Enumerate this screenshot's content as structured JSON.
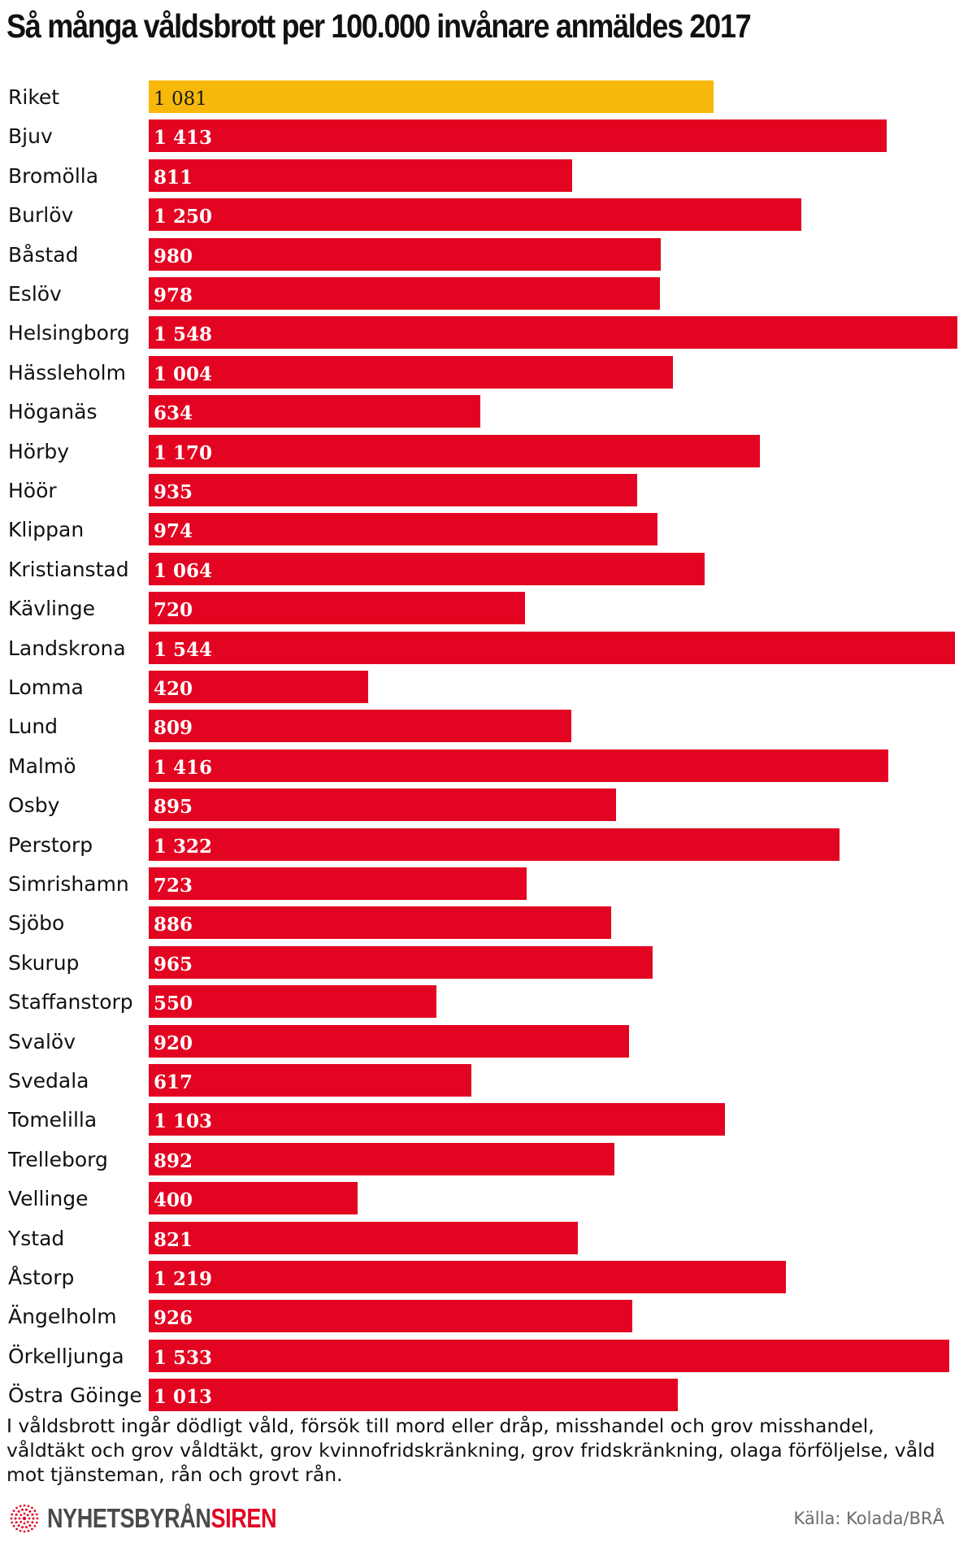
{
  "title": "Så många våldsbrott per 100.000 invånare anmäldes 2017",
  "chart_data": {
    "type": "bar",
    "orientation": "horizontal",
    "title": "Så många våldsbrott per 100.000 invånare anmäldes 2017",
    "categories": [
      "Riket",
      "Bjuv",
      "Bromölla",
      "Burlöv",
      "Båstad",
      "Eslöv",
      "Helsingborg",
      "Hässleholm",
      "Höganäs",
      "Hörby",
      "Höör",
      "Klippan",
      "Kristianstad",
      "Kävlinge",
      "Landskrona",
      "Lomma",
      "Lund",
      "Malmö",
      "Osby",
      "Perstorp",
      "Simrishamn",
      "Sjöbo",
      "Skurup",
      "Staffanstorp",
      "Svalöv",
      "Svedala",
      "Tomelilla",
      "Trelleborg",
      "Vellinge",
      "Ystad",
      "Åstorp",
      "Ängelholm",
      "Örkelljunga",
      "Östra Göinge"
    ],
    "values": [
      1081,
      1413,
      811,
      1250,
      980,
      978,
      1548,
      1004,
      634,
      1170,
      935,
      974,
      1064,
      720,
      1544,
      420,
      809,
      1416,
      895,
      1322,
      723,
      886,
      965,
      550,
      920,
      617,
      1103,
      892,
      400,
      821,
      1219,
      926,
      1533,
      1013
    ],
    "value_labels": [
      "1 081",
      "1 413",
      "811",
      "1 250",
      "980",
      "978",
      "1 548",
      "1 004",
      "634",
      "1 170",
      "935",
      "974",
      "1 064",
      "720",
      "1 544",
      "420",
      "809",
      "1 416",
      "895",
      "1 322",
      "723",
      "886",
      "965",
      "550",
      "920",
      "617",
      "1 103",
      "892",
      "400",
      "821",
      "1 219",
      "926",
      "1 533",
      "1 013"
    ],
    "highlight_index": 0,
    "colors": {
      "highlight": "#f7b80b",
      "default": "#e30421",
      "highlight_text": "#1a1a1a",
      "default_text": "#ffffff"
    },
    "xlim": [
      0,
      1548
    ],
    "grid": false,
    "legend": "none"
  },
  "footnote": "I våldsbrott ingår dödligt våld, försök till mord eller dråp, misshandel och grov misshandel, våldtäkt och grov våldtäkt, grov kvinnofridskränkning, grov fridskränkning, olaga förföljelse, våld mot tjänsteman, rån och grovt rån.",
  "brand": {
    "part1": "NYHETSBYRÅN",
    "part2": "SIREN",
    "icon": "sunburst-logo-icon"
  },
  "source": "Källa: Kolada/BRÅ"
}
